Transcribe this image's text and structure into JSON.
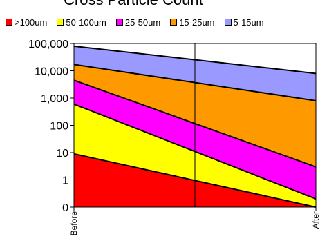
{
  "chart_data": {
    "type": "area",
    "stacked": true,
    "title": "Cross Particle Count",
    "categories": [
      "Before",
      "After"
    ],
    "yscale": "log",
    "ylim": [
      0.1,
      100000
    ],
    "yticks": [
      0.1,
      1,
      10,
      100,
      1000,
      10000,
      100000
    ],
    "ytick_labels": [
      "0",
      "1",
      "10",
      "100",
      "1,000",
      "10,000",
      "100,000"
    ],
    "legend_position": "top",
    "series": [
      {
        "name": ">100um",
        "color": "#FF0000",
        "values": [
          9,
          0.1
        ]
      },
      {
        "name": "50-100um",
        "color": "#FFFF00",
        "values": [
          600,
          0.2
        ]
      },
      {
        "name": "25-50um",
        "color": "#FF00FF",
        "values": [
          4500,
          3
        ]
      },
      {
        "name": "15-25um",
        "color": "#FF9900",
        "values": [
          17000,
          800
        ]
      },
      {
        "name": "5-15um",
        "color": "#9999FF",
        "values": [
          80000,
          8000
        ]
      }
    ]
  }
}
